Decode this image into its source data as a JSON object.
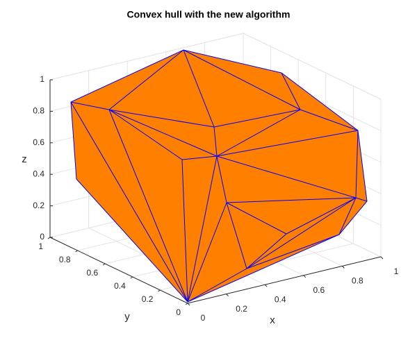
{
  "chart_data": {
    "type": "hull3d",
    "title": "Convex hull with the new algorithm",
    "xlabel": "x",
    "ylabel": "y",
    "zlabel": "z",
    "xlim": [
      0,
      1
    ],
    "ylim": [
      0,
      1
    ],
    "zlim": [
      0,
      1
    ],
    "xticks": [
      0,
      0.2,
      0.4,
      0.6,
      0.8,
      1
    ],
    "yticks": [
      0,
      0.2,
      0.4,
      0.6,
      0.8,
      1
    ],
    "zticks": [
      0,
      0.2,
      0.4,
      0.6,
      0.8,
      1
    ],
    "color": "#ff8000",
    "edge_color": "#0000ff",
    "grid": true
  }
}
